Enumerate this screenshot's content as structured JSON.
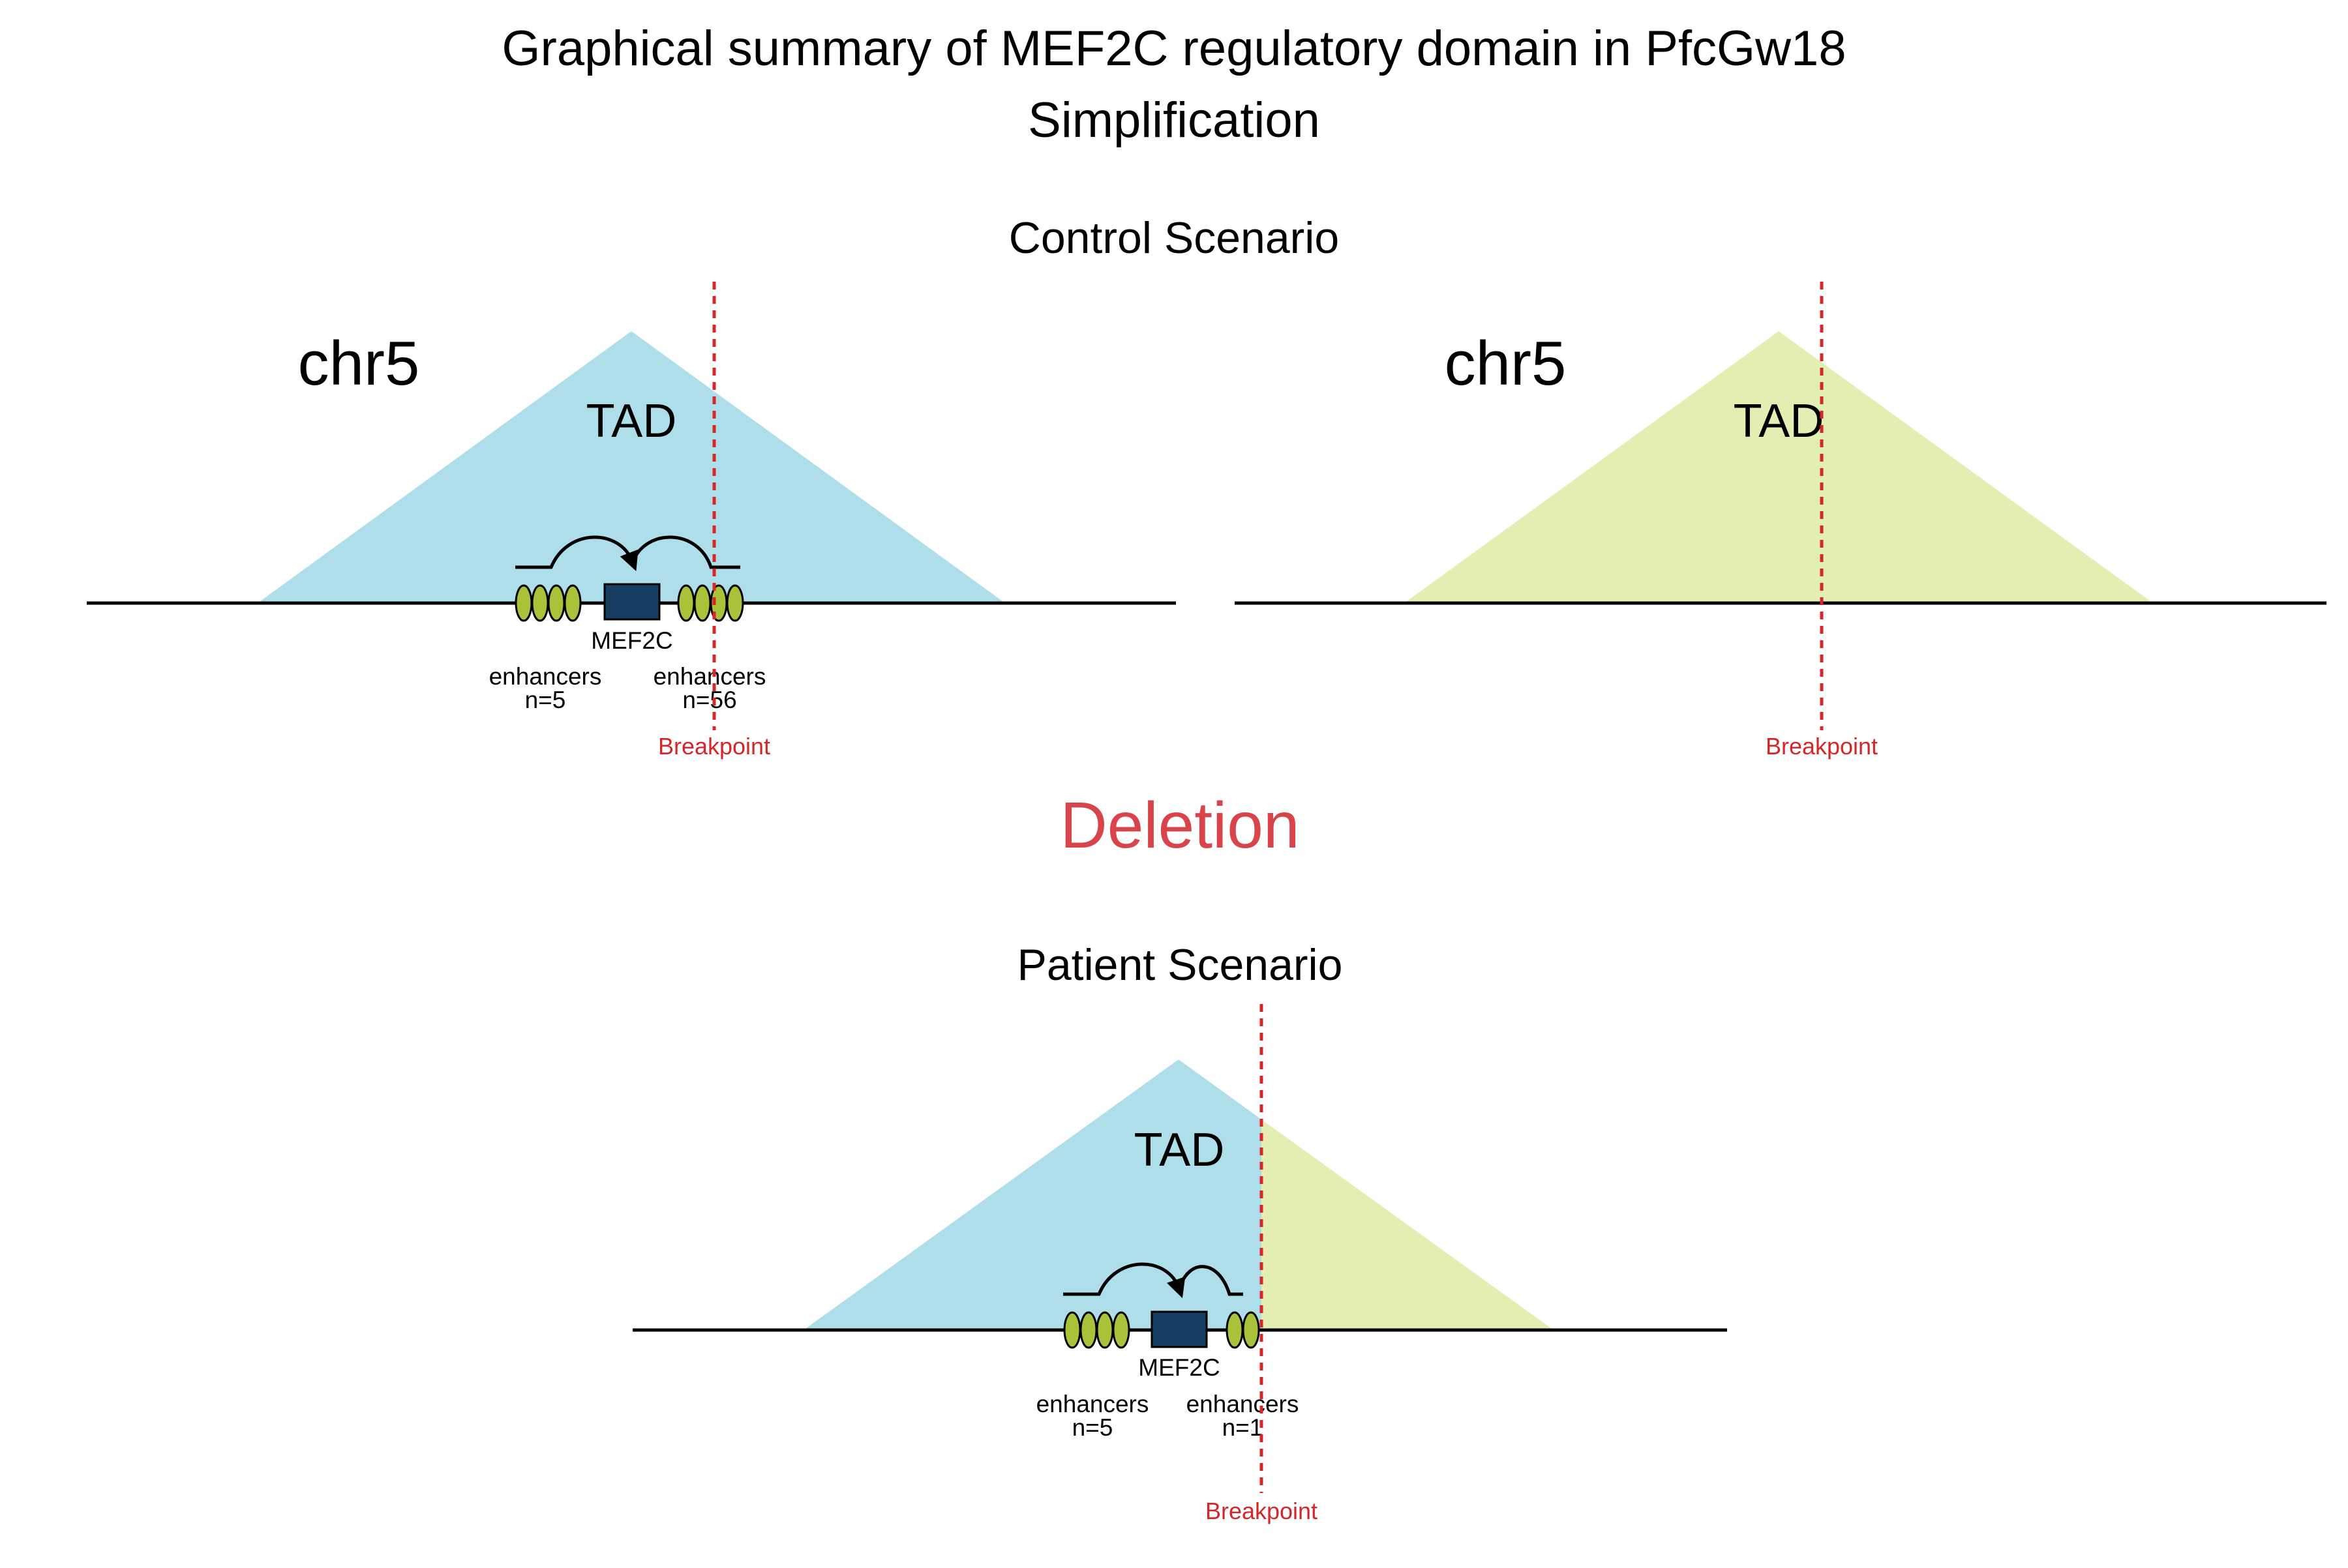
{
  "title": {
    "line1": "Graphical summary of MEF2C regulatory domain in PfcGw18",
    "line2": "Simplification"
  },
  "colors": {
    "tad_blue": "#ADDEE9",
    "tad_green": "#E3EEB3",
    "enhancer_fill": "#A8C23A",
    "gene_fill": "#163E62",
    "breakpoint": "#D62728",
    "deletion": "#D9444A",
    "line": "#000000"
  },
  "control": {
    "heading": "Control Scenario",
    "left": {
      "chrom": "chr5",
      "tad_label": "TAD",
      "gene": "MEF2C",
      "enhancers_left": {
        "label": "enhancers",
        "count": "n=5"
      },
      "enhancers_right": {
        "label": "enhancers",
        "count": "n=56"
      },
      "breakpoint": "Breakpoint"
    },
    "right": {
      "chrom": "chr5",
      "tad_label": "TAD",
      "breakpoint": "Breakpoint"
    }
  },
  "event": "Deletion",
  "patient": {
    "heading": "Patient Scenario",
    "tad_label": "TAD",
    "gene": "MEF2C",
    "enhancers_left": {
      "label": "enhancers",
      "count": "n=5"
    },
    "enhancers_right": {
      "label": "enhancers",
      "count": "n=1"
    },
    "breakpoint": "Breakpoint"
  }
}
